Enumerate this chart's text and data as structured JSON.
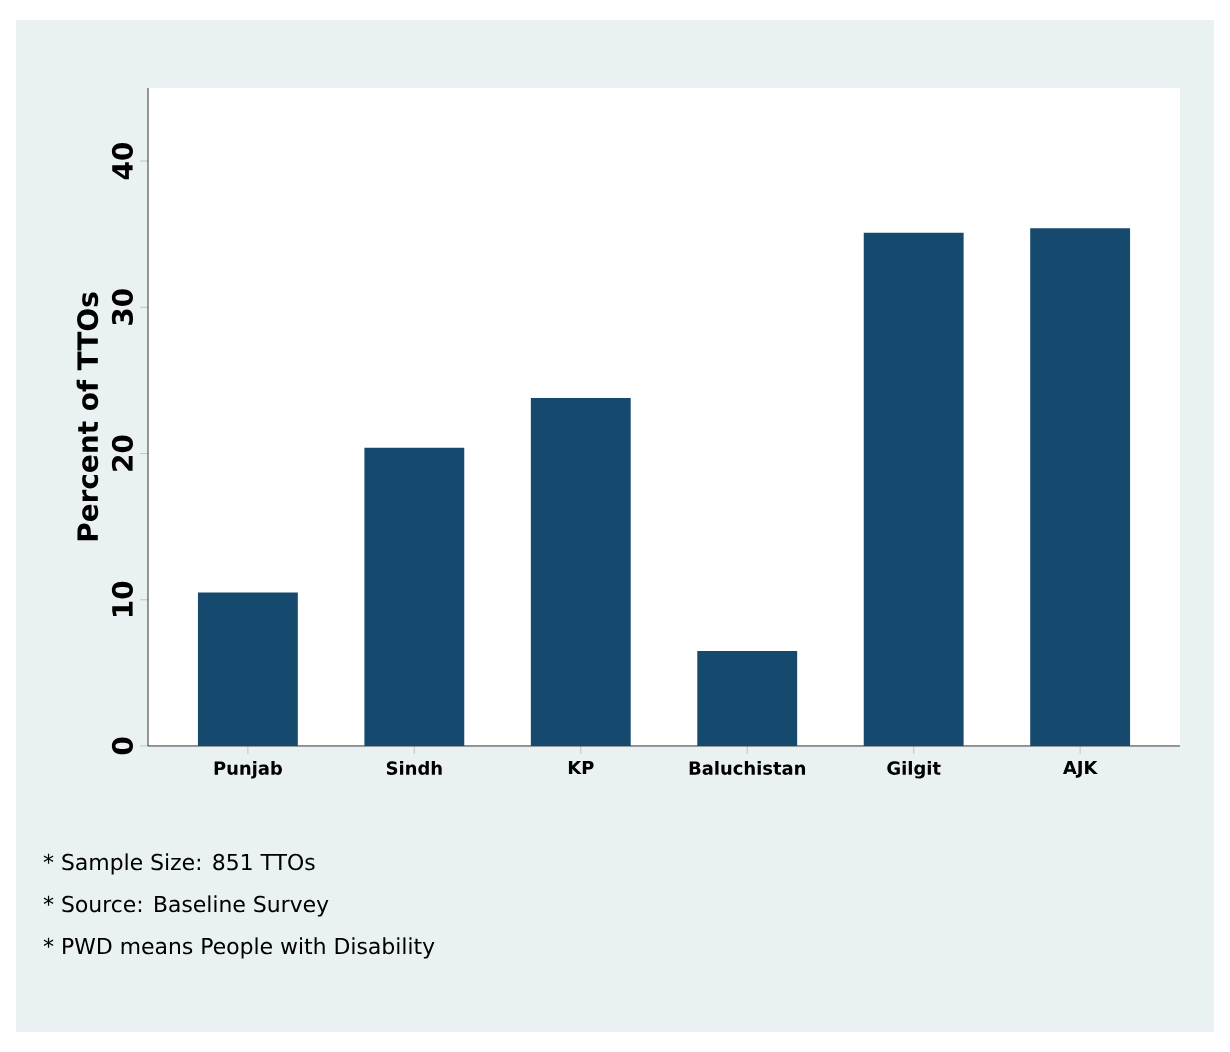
{
  "chart_data": {
    "type": "bar",
    "ylabel": "Percent of TTOs",
    "categories": [
      "Punjab",
      "Sindh",
      "KP",
      "Baluchistan",
      "Gilgit",
      "AJK"
    ],
    "values": [
      10.5,
      20.4,
      23.8,
      6.5,
      35.1,
      35.4
    ],
    "color": "#154a6e",
    "ylim": [
      0,
      45
    ],
    "yticks": [
      0,
      10,
      20,
      30,
      40
    ],
    "annotations": [
      "* Sample Size: 851 TTOs",
      "* Source: Baseline Survey",
      "* PWD means People with Disability"
    ]
  }
}
